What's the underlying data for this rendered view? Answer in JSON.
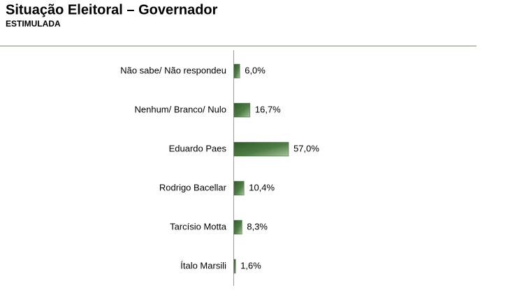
{
  "chart_data": {
    "type": "bar",
    "orientation": "horizontal",
    "title": "Situação Eleitoral – Governador",
    "subtitle": "ESTIMULADA",
    "categories": [
      "Não sabe/ Não respondeu",
      "Nenhum/ Branco/ Nulo",
      "Eduardo Paes",
      "Rodrigo Bacellar",
      "Tarcísio Motta",
      "Ítalo Marsili"
    ],
    "values": [
      6.0,
      16.7,
      57.0,
      10.4,
      8.3,
      1.6
    ],
    "value_labels": [
      "6,0%",
      "16,7%",
      "57,0%",
      "10,4%",
      "8,3%",
      "1,6%"
    ],
    "color": "#3f6b37"
  }
}
